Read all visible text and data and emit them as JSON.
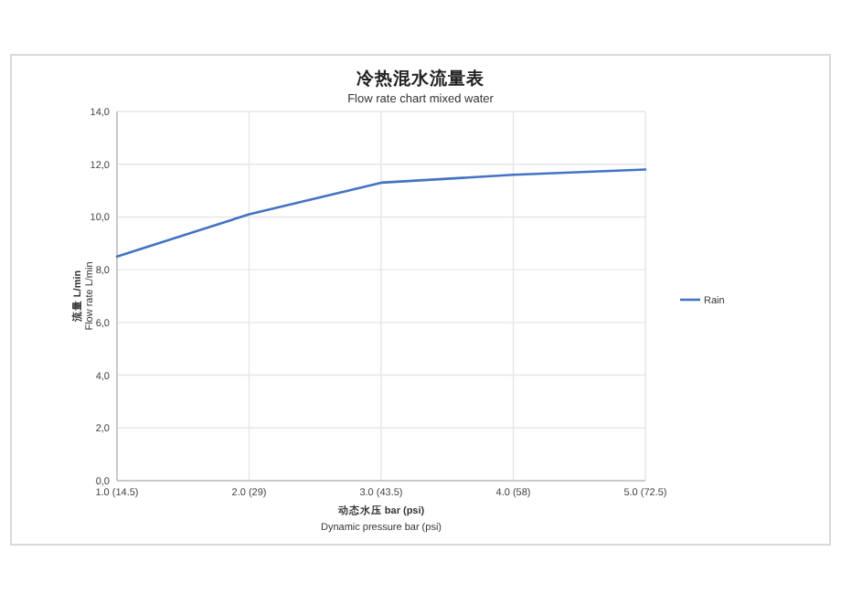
{
  "chart_data": {
    "type": "line",
    "title": "冷热混水流量表",
    "subtitle": "Flow rate chart mixed water",
    "xlabel": "**动态水压 bar (psi)**\nDynamic pressure bar (psi)",
    "ylabel": "**流量 L/min**\nFlow rate L/min",
    "categories": [
      "1.0 (14.5)",
      "2.0 (29)",
      "3.0 (43.5)",
      "4.0 (58)",
      "5.0 (72.5)"
    ],
    "series": [
      {
        "name": "Rain",
        "color": "#4472c4",
        "values": [
          8.5,
          10.1,
          11.3,
          11.6,
          11.8
        ]
      }
    ],
    "ylim": [
      0,
      14
    ],
    "yticks": [
      {
        "value": 0,
        "label": "0,0"
      },
      {
        "value": 2,
        "label": "2,0"
      },
      {
        "value": 4,
        "label": "4,0"
      },
      {
        "value": 6,
        "label": "6,0"
      },
      {
        "value": 8,
        "label": "8,0"
      },
      {
        "value": 10,
        "label": "10,0"
      },
      {
        "value": 12,
        "label": "12,0"
      },
      {
        "value": 14,
        "label": "14,0"
      }
    ],
    "grid": true,
    "legend": "right"
  }
}
